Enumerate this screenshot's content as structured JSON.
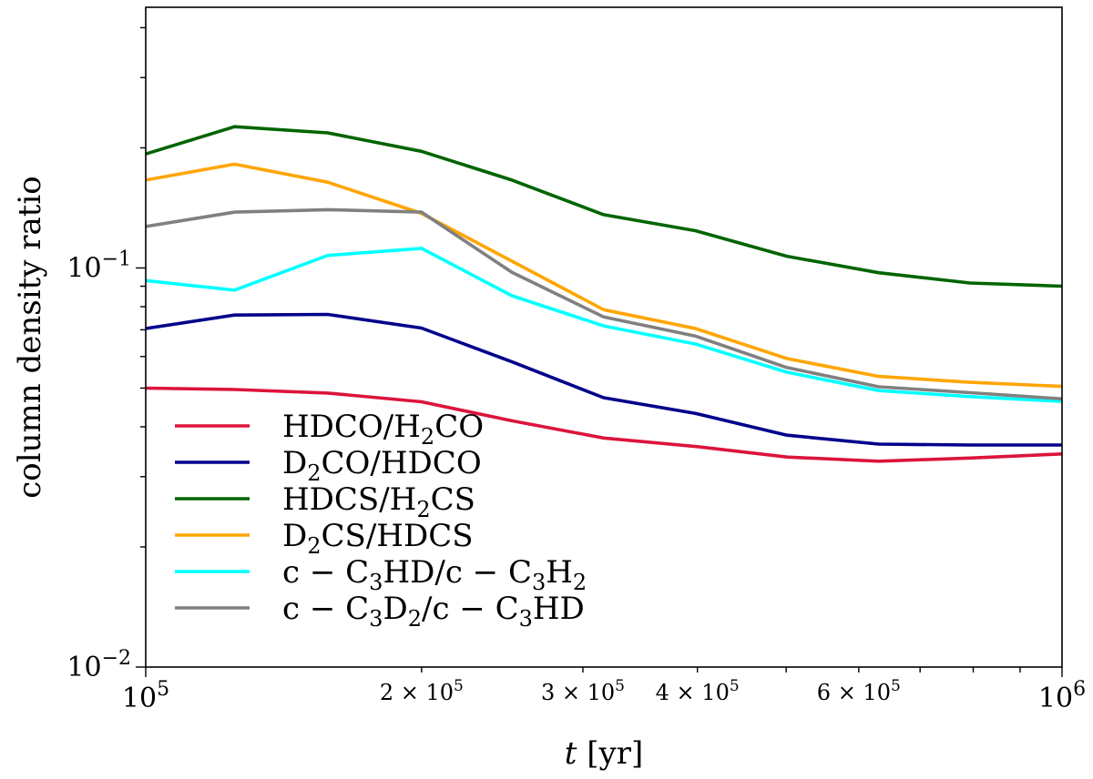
{
  "chart_data": {
    "type": "line",
    "title": "",
    "xlabel_html": "<tspan font-style='italic'>t</tspan> [yr]",
    "ylabel": "column density ratio",
    "xscale": "log",
    "yscale": "log",
    "xlim": [
      100000,
      1000000
    ],
    "ylim": [
      0.01,
      0.45
    ],
    "grid": false,
    "legend_position": "lower-left",
    "x": [
      100000,
      125000,
      158000,
      200000,
      251000,
      316000,
      398000,
      501000,
      631000,
      794000,
      1000000
    ],
    "x_ticks_major": [
      {
        "value": 100000,
        "base": "10",
        "exp": "5"
      },
      {
        "value": 1000000,
        "base": "10",
        "exp": "6"
      }
    ],
    "x_ticks_minor_labeled": [
      {
        "value": 200000,
        "mant": "2",
        "base": "10",
        "exp": "5"
      },
      {
        "value": 300000,
        "mant": "3",
        "base": "10",
        "exp": "5"
      },
      {
        "value": 400000,
        "mant": "4",
        "base": "10",
        "exp": "5"
      },
      {
        "value": 600000,
        "mant": "6",
        "base": "10",
        "exp": "5"
      }
    ],
    "y_ticks_major": [
      {
        "value": 0.01,
        "base": "10",
        "exp": "−2"
      },
      {
        "value": 0.1,
        "base": "10",
        "exp": "−1"
      }
    ],
    "series": [
      {
        "name_html": "HDCO/H<tspan dy='8' font-size='24px'>2</tspan><tspan dy='-8'>CO</tspan>",
        "color": "#dc143c",
        "values": [
          0.05,
          0.0496,
          0.0486,
          0.0462,
          0.0414,
          0.0375,
          0.0357,
          0.0336,
          0.0328,
          0.0334,
          0.0342
        ]
      },
      {
        "name_html": "D<tspan dy='8' font-size='24px'>2</tspan><tspan dy='-8'>CO/HDCO</tspan>",
        "color": "#00008b",
        "values": [
          0.0705,
          0.0762,
          0.0765,
          0.0707,
          0.0582,
          0.0473,
          0.0432,
          0.0381,
          0.0362,
          0.036,
          0.036
        ]
      },
      {
        "name_html": "HDCS/H<tspan dy='8' font-size='24px'>2</tspan><tspan dy='-8'>CS</tspan>",
        "color": "#006400",
        "values": [
          0.193,
          0.226,
          0.218,
          0.196,
          0.166,
          0.136,
          0.124,
          0.107,
          0.0973,
          0.0917,
          0.09
        ]
      },
      {
        "name_html": "D<tspan dy='8' font-size='24px'>2</tspan><tspan dy='-8'>CS/HDCS</tspan>",
        "color": "#ffa500",
        "values": [
          0.166,
          0.182,
          0.164,
          0.137,
          0.104,
          0.0786,
          0.0705,
          0.0593,
          0.0535,
          0.0517,
          0.0505
        ]
      },
      {
        "name_html": "c − C<tspan dy='8' font-size='24px'>3</tspan><tspan dy='-8'>HD/c − C</tspan><tspan dy='8' font-size='24px'>2</tspan><tspan dy='-8'></tspan>",
        "name_html_fixed": "c − C<tspan dy='8' font-size='24px'>3</tspan><tspan dy='-8'>HD/c − C</tspan><tspan dy='8' font-size='24px'>3</tspan><tspan dy='-8'>H</tspan><tspan dy='8' font-size='24px'>2</tspan>",
        "color": "#00ffff",
        "values": [
          0.093,
          0.088,
          0.1075,
          0.112,
          0.0852,
          0.0716,
          0.0645,
          0.0548,
          0.0493,
          0.0476,
          0.0463
        ]
      },
      {
        "name_html": "c − C<tspan dy='8' font-size='24px'>3</tspan><tspan dy='-8'>D</tspan><tspan dy='8' font-size='24px'>2</tspan><tspan dy='-8'>/c − C</tspan><tspan dy='8' font-size='24px'>3</tspan><tspan dy='-8'>HD</tspan>",
        "color": "#808080",
        "values": [
          0.127,
          0.138,
          0.14,
          0.138,
          0.0975,
          0.0754,
          0.0675,
          0.0563,
          0.0504,
          0.0487,
          0.047
        ]
      }
    ]
  }
}
